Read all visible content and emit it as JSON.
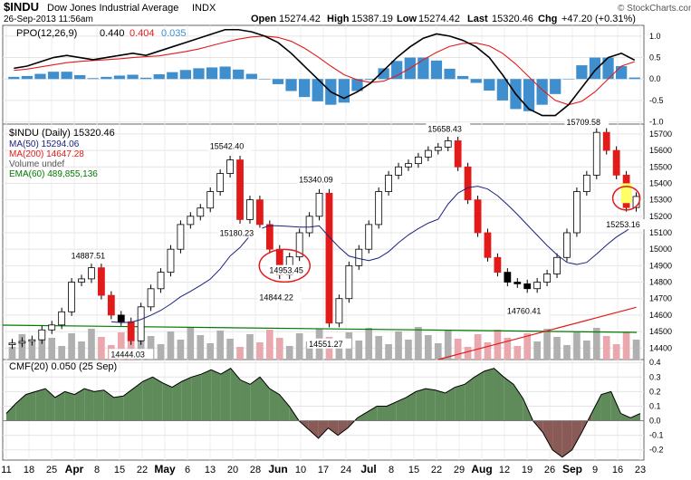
{
  "header": {
    "symbol": "$INDU",
    "name": "Dow Jones Industrial Average",
    "exchange": "INDX",
    "timestamp": "26-Sep-2013 11:56am",
    "brand": "© StockCharts.com",
    "quote": {
      "open_label": "Open",
      "open": "15274.42",
      "high_label": "High",
      "high": "15387.19",
      "low_label": "Low",
      "low": "15274.42",
      "last_label": "Last",
      "last": "15320.46",
      "chg_label": "Chg",
      "chg": "+47.20 (+0.31%)"
    }
  },
  "colors": {
    "ma50": "#1a237e",
    "ma200": "#e31a1a",
    "ema60": "#007a00",
    "ppo_line": "#000000",
    "ppo_signal": "#e31a1a",
    "ppo_hist": "#3f8fce",
    "cmf_pos": "#5f8a5a",
    "cmf_neg": "#8a5a56",
    "vol_up": "#b0b0b0",
    "vol_down": "#e8a8ad",
    "annotation": "#e31a1a",
    "highlight": "#ffff66"
  },
  "chart_data": [
    {
      "type": "line",
      "panel": "ppo",
      "legend": {
        "label": "PPO(12,26,9)",
        "ppo_value": "0.440",
        "signal_value": "0.404",
        "hist_value": "0.035"
      },
      "y_ticks": [
        "1.0",
        "0.5",
        "0.0",
        "-0.5",
        "-1.0"
      ],
      "y_tick_values": [
        1.0,
        0.5,
        0.0,
        -0.5,
        -1.0
      ],
      "ylim": [
        -1.05,
        1.25
      ],
      "series": [
        {
          "name": "PPO",
          "values": [
            0.25,
            0.3,
            0.4,
            0.5,
            0.55,
            0.5,
            0.45,
            0.5,
            0.55,
            0.6,
            0.55,
            0.65,
            0.75,
            0.85,
            0.95,
            1.05,
            1.15,
            1.15,
            1.1,
            1.0,
            0.85,
            0.6,
            0.3,
            0.0,
            -0.3,
            -0.45,
            -0.3,
            -0.1,
            0.2,
            0.5,
            0.75,
            0.95,
            1.05,
            1.0,
            0.9,
            0.75,
            0.5,
            0.1,
            -0.35,
            -0.7,
            -0.85,
            -0.85,
            -0.6,
            -0.2,
            0.2,
            0.5,
            0.6,
            0.44
          ]
        },
        {
          "name": "Signal",
          "values": [
            0.2,
            0.23,
            0.28,
            0.33,
            0.38,
            0.41,
            0.43,
            0.45,
            0.47,
            0.5,
            0.52,
            0.54,
            0.59,
            0.64,
            0.7,
            0.78,
            0.86,
            0.93,
            0.98,
            1.0,
            0.97,
            0.88,
            0.72,
            0.52,
            0.3,
            0.1,
            -0.02,
            -0.08,
            -0.05,
            0.08,
            0.25,
            0.45,
            0.62,
            0.76,
            0.83,
            0.84,
            0.77,
            0.6,
            0.35,
            0.05,
            -0.25,
            -0.5,
            -0.6,
            -0.52,
            -0.3,
            0.0,
            0.3,
            0.404
          ]
        },
        {
          "name": "Histogram",
          "values": [
            0.05,
            0.07,
            0.12,
            0.17,
            0.17,
            0.09,
            0.02,
            0.05,
            0.08,
            0.1,
            0.03,
            0.11,
            0.16,
            0.21,
            0.25,
            0.27,
            0.29,
            0.22,
            0.12,
            0.0,
            -0.12,
            -0.28,
            -0.42,
            -0.52,
            -0.6,
            -0.55,
            -0.28,
            -0.02,
            0.25,
            0.42,
            0.5,
            0.5,
            0.43,
            0.24,
            0.07,
            -0.09,
            -0.27,
            -0.5,
            -0.7,
            -0.75,
            -0.6,
            -0.35,
            0.0,
            0.32,
            0.5,
            0.5,
            0.3,
            0.035
          ]
        }
      ]
    },
    {
      "type": "candlestick",
      "panel": "price",
      "legend": [
        {
          "key": "price",
          "text": "$INDU (Daily) 15320.46"
        },
        {
          "key": "ma50",
          "text": "MA(50) 15294.06"
        },
        {
          "key": "ma200",
          "text": "MA(200) 14647.28"
        },
        {
          "key": "volume",
          "text": "Volume undef"
        },
        {
          "key": "ema60",
          "text": "EMA(60) 489,855,136"
        }
      ],
      "y_ticks": [
        15700,
        15600,
        15500,
        15400,
        15300,
        15200,
        15100,
        15000,
        14900,
        14800,
        14700,
        14600,
        14500,
        14400
      ],
      "ylim": [
        14330,
        15760
      ],
      "x": [
        0,
        1,
        2,
        3,
        4,
        5,
        6,
        7,
        8,
        9,
        10,
        11,
        12,
        13,
        14,
        15,
        16,
        17,
        18,
        19,
        20,
        21,
        22,
        23,
        24,
        25,
        26,
        27,
        28,
        29,
        30,
        31,
        32,
        33,
        34,
        35,
        36,
        37,
        38,
        39,
        40,
        41,
        42,
        43,
        44,
        45,
        46,
        47
      ],
      "close": [
        14430,
        14440,
        14450,
        14510,
        14540,
        14620,
        14800,
        14820,
        14887.51,
        14720,
        14600,
        14560,
        14444.03,
        14650,
        14760,
        14860,
        15000,
        15150,
        15200,
        15250,
        15350,
        15460,
        15542.4,
        15180.23,
        15300,
        15150,
        15000,
        14844.22,
        14953.45,
        15100,
        15200,
        15340.09,
        14551.27,
        14700,
        14900,
        15000,
        15150,
        15350,
        15450,
        15500,
        15520,
        15560,
        15600,
        15620,
        15658.43,
        15500,
        15300,
        15100
      ],
      "close_part2": [
        14950,
        14860,
        14800,
        14790,
        14760.41,
        14800,
        14850,
        14950,
        15100,
        15350,
        15450,
        15709.58,
        15600,
        15450,
        15253.16,
        15320.46
      ],
      "x_ticks": [
        "11",
        "18",
        "25",
        "Apr",
        "8",
        "15",
        "22",
        "May",
        "6",
        "13",
        "20",
        "28",
        "Jun",
        "10",
        "17",
        "24",
        "Jul",
        "8",
        "15",
        "22",
        "29",
        "Aug",
        "12",
        "19",
        "26",
        "Sep",
        "9",
        "16",
        "23"
      ],
      "annotations": {
        "highs_lows": [
          "15709.58",
          "15658.43",
          "15542.40",
          "15340.09",
          "15180.23",
          "14953.45",
          "14844.22",
          "14887.51",
          "14444.03",
          "14551.27",
          "14760.41",
          "15253.16"
        ]
      }
    },
    {
      "type": "area",
      "panel": "cmf",
      "legend": "CMF(20) 0.050 (25 Sep)",
      "y_ticks": [
        "0.4",
        "0.3",
        "0.2",
        "0.1",
        "0.0",
        "-0.1",
        "-0.2"
      ],
      "y_tick_values": [
        0.4,
        0.3,
        0.2,
        0.1,
        0.0,
        -0.1,
        -0.2
      ],
      "ylim": [
        -0.27,
        0.42
      ],
      "values": [
        0.05,
        0.12,
        0.18,
        0.2,
        0.22,
        0.16,
        0.2,
        0.18,
        0.22,
        0.2,
        0.21,
        0.16,
        0.17,
        0.22,
        0.27,
        0.3,
        0.26,
        0.23,
        0.27,
        0.3,
        0.32,
        0.35,
        0.32,
        0.36,
        0.28,
        0.25,
        0.3,
        0.22,
        0.18,
        0.1,
        0.0,
        -0.06,
        -0.12,
        -0.05,
        -0.1,
        -0.05,
        0.02,
        0.06,
        0.1,
        0.1,
        0.13,
        0.16,
        0.2,
        0.22,
        0.21,
        0.19,
        0.23,
        0.25,
        0.3,
        0.34,
        0.36,
        0.3,
        0.25,
        0.15,
        0.0,
        -0.08,
        -0.2,
        -0.25,
        -0.2,
        -0.08,
        0.05,
        0.18,
        0.2,
        0.05,
        0.02,
        0.05
      ]
    }
  ]
}
